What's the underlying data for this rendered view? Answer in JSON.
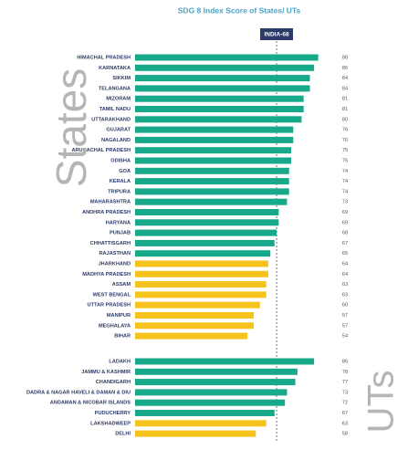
{
  "chart_data": {
    "type": "bar",
    "orientation": "horizontal",
    "title": "SDG 8 Index Score of States/ UTs",
    "xlim": [
      0,
      100
    ],
    "reference": {
      "value": 68,
      "label": "INDIA-68"
    },
    "groups": [
      {
        "name": "States",
        "categories": [
          "HIMACHAL PRADESH",
          "KARNATAKA",
          "SIKKIM",
          "TELANGANA",
          "MIZORAM",
          "TAMIL NADU",
          "UTTARAKHAND",
          "GUJARAT",
          "NAGALAND",
          "ARUNACHAL PRADESH",
          "ODISHA",
          "GOA",
          "KERALA",
          "TRIPURA",
          "MAHARASHTRA",
          "ANDHRA PRADESH",
          "HARYANA",
          "PUNJAB",
          "CHHATTISGARH",
          "RAJASTHAN",
          "JHARKHAND",
          "MADHYA PRADESH",
          "ASSAM",
          "WEST BENGAL",
          "UTTAR PRADESH",
          "MANIPUR",
          "MEGHALAYA",
          "BIHAR"
        ],
        "values": [
          88,
          86,
          84,
          84,
          81,
          81,
          80,
          76,
          76,
          75,
          75,
          74,
          74,
          74,
          73,
          69,
          69,
          68,
          67,
          65,
          64,
          64,
          63,
          63,
          60,
          57,
          57,
          54
        ],
        "colors": [
          "#18a88a",
          "#18a88a",
          "#18a88a",
          "#18a88a",
          "#18a88a",
          "#18a88a",
          "#18a88a",
          "#18a88a",
          "#18a88a",
          "#18a88a",
          "#18a88a",
          "#18a88a",
          "#18a88a",
          "#18a88a",
          "#18a88a",
          "#18a88a",
          "#18a88a",
          "#18a88a",
          "#18a88a",
          "#18a88a",
          "#f6c31c",
          "#f6c31c",
          "#f6c31c",
          "#f6c31c",
          "#f6c31c",
          "#f6c31c",
          "#f6c31c",
          "#f6c31c"
        ]
      },
      {
        "name": "UTs",
        "categories": [
          "LADAKH",
          "JAMMU & KASHMIR",
          "CHANDIGARH",
          "DADRA & NAGAR HAVELI & DAMAN & DIU",
          "ANDAMAN & NICOBAR ISLANDS",
          "PUDUCHERRY",
          "LAKSHADWEEP",
          "DELHI"
        ],
        "values": [
          86,
          78,
          77,
          73,
          72,
          67,
          63,
          58
        ],
        "colors": [
          "#18a88a",
          "#18a88a",
          "#18a88a",
          "#18a88a",
          "#18a88a",
          "#18a88a",
          "#f6c31c",
          "#f6c31c"
        ]
      }
    ]
  }
}
